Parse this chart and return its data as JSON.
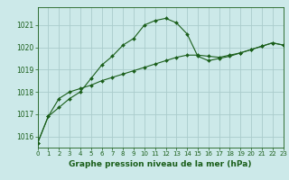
{
  "title": "Graphe pression niveau de la mer (hPa)",
  "background_color": "#cce9e9",
  "grid_color": "#aacccc",
  "line_color": "#1a5e1a",
  "xlim": [
    0,
    23
  ],
  "ylim": [
    1015.5,
    1021.8
  ],
  "yticks": [
    1016,
    1017,
    1018,
    1019,
    1020,
    1021
  ],
  "xticks": [
    0,
    1,
    2,
    3,
    4,
    5,
    6,
    7,
    8,
    9,
    10,
    11,
    12,
    13,
    14,
    15,
    16,
    17,
    18,
    19,
    20,
    21,
    22,
    23
  ],
  "series1_x": [
    0,
    1,
    2,
    3,
    4,
    5,
    6,
    7,
    8,
    9,
    10,
    11,
    12,
    13,
    14,
    15,
    16,
    17,
    18,
    19,
    20,
    21,
    22,
    23
  ],
  "series1_y": [
    1015.7,
    1016.9,
    1017.3,
    1017.7,
    1018.0,
    1018.6,
    1019.2,
    1019.6,
    1020.1,
    1020.4,
    1021.0,
    1021.2,
    1021.3,
    1021.1,
    1020.6,
    1019.6,
    1019.4,
    1019.5,
    1019.6,
    1019.75,
    1019.9,
    1020.05,
    1020.2,
    1020.1
  ],
  "series2_x": [
    0,
    1,
    2,
    3,
    4,
    5,
    6,
    7,
    8,
    9,
    10,
    11,
    12,
    13,
    14,
    15,
    16,
    17,
    18,
    19,
    20,
    21,
    22,
    23
  ],
  "series2_y": [
    1015.7,
    1016.9,
    1017.7,
    1018.0,
    1018.15,
    1018.3,
    1018.5,
    1018.65,
    1018.8,
    1018.95,
    1019.1,
    1019.25,
    1019.4,
    1019.55,
    1019.65,
    1019.65,
    1019.6,
    1019.55,
    1019.65,
    1019.75,
    1019.9,
    1020.05,
    1020.2,
    1020.1
  ],
  "xlabel_fontsize": 6.5,
  "tick_fontsize": 5.5,
  "marker_size": 2.0,
  "line_width": 0.8
}
